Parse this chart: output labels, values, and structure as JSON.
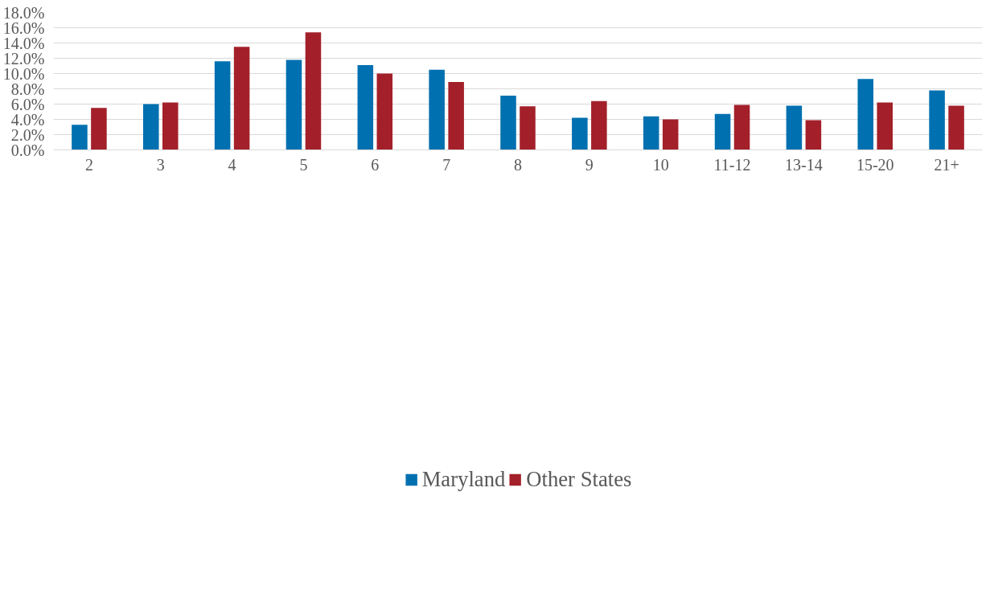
{
  "chart_data": {
    "type": "bar",
    "categories": [
      "2",
      "3",
      "4",
      "5",
      "6",
      "7",
      "8",
      "9",
      "10",
      "11-12",
      "13-14",
      "15-20",
      "21+"
    ],
    "series": [
      {
        "name": "Maryland",
        "color": "#0070b0",
        "values": [
          3.3,
          6.0,
          11.6,
          11.8,
          11.1,
          10.5,
          7.1,
          4.2,
          4.4,
          4.7,
          5.8,
          9.3,
          7.8
        ]
      },
      {
        "name": "Other States",
        "color": "#a3202a",
        "values": [
          5.5,
          6.2,
          13.5,
          15.4,
          10.0,
          8.9,
          5.7,
          6.4,
          4.0,
          5.9,
          3.9,
          6.2,
          5.8
        ]
      }
    ],
    "ylim": [
      0,
      18
    ],
    "yticks": [
      {
        "value": 0,
        "label": "0.0%"
      },
      {
        "value": 2,
        "label": "2.0%"
      },
      {
        "value": 4,
        "label": "4.0%"
      },
      {
        "value": 6,
        "label": "6.0%"
      },
      {
        "value": 8,
        "label": "8.0%"
      },
      {
        "value": 10,
        "label": "10.0%"
      },
      {
        "value": 12,
        "label": "12.0%"
      },
      {
        "value": 14,
        "label": "14.0%"
      },
      {
        "value": 16,
        "label": "16.0%"
      },
      {
        "value": 18,
        "label": "18.0%"
      }
    ],
    "grid": "y",
    "legend": "bottom"
  }
}
